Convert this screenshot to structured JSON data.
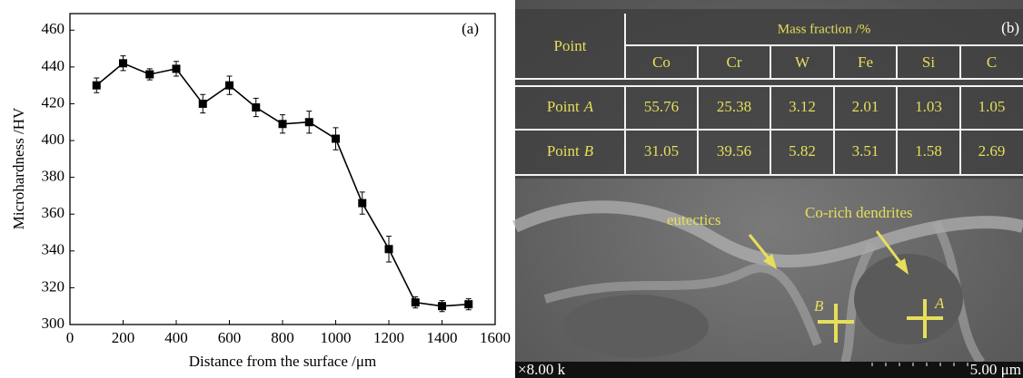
{
  "chart_data": {
    "type": "line",
    "label": "(a)",
    "x_label": "Distance from the surface /μm",
    "y_label": "Microhardness /HV",
    "x": [
      100,
      200,
      300,
      400,
      500,
      600,
      700,
      800,
      900,
      1000,
      1100,
      1200,
      1300,
      1400,
      1500
    ],
    "values": [
      430,
      442,
      436,
      439,
      420,
      430,
      418,
      409,
      410,
      401,
      366,
      341,
      312,
      310,
      311
    ],
    "errors": [
      4,
      4,
      3,
      4,
      5,
      5,
      5,
      5,
      6,
      6,
      6,
      7,
      3,
      3,
      3
    ],
    "color": "#000000",
    "xlim": [
      0,
      1600
    ],
    "xticks": [
      0,
      200,
      400,
      600,
      800,
      1000,
      1200,
      1400,
      1600
    ],
    "ylim": [
      300,
      469
    ],
    "yticks": [
      300,
      320,
      340,
      360,
      380,
      400,
      420,
      440,
      460
    ]
  },
  "panel_b": {
    "label": "(b)",
    "table": {
      "corner": "Point",
      "group_header": "Mass fraction /%",
      "columns": [
        "Co",
        "Cr",
        "W",
        "Fe",
        "Si",
        "C"
      ],
      "rows": [
        {
          "label": "Point",
          "id": "A",
          "values": [
            "55.76",
            "25.38",
            "3.12",
            "2.01",
            "1.03",
            "1.05"
          ]
        },
        {
          "label": "Point",
          "id": "B",
          "values": [
            "31.05",
            "39.56",
            "5.82",
            "3.51",
            "1.58",
            "2.69"
          ]
        }
      ]
    },
    "annotations": [
      "eutectics",
      "Co-rich dendrites"
    ],
    "markers": [
      "B",
      "A"
    ],
    "magnification": "×8.00 k",
    "scale_bar": "5.00 μm"
  }
}
